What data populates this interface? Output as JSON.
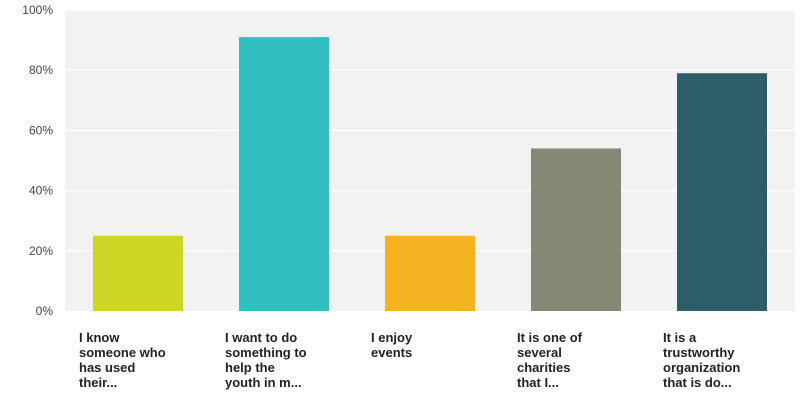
{
  "chart_data": {
    "type": "bar",
    "categories": [
      [
        "I know",
        "someone who",
        "has used",
        "their..."
      ],
      [
        "I want to do",
        "something to",
        "help the",
        "youth in m..."
      ],
      [
        "I enjoy",
        "events"
      ],
      [
        "It is one of",
        "several",
        "charities",
        "that I..."
      ],
      [
        "It is a",
        "trustworthy",
        "organization",
        "that is do..."
      ]
    ],
    "values": [
      25,
      91,
      25,
      54,
      79
    ],
    "colors": [
      "#cdd625",
      "#33bfbf",
      "#f4b120",
      "#858874",
      "#2c5d68"
    ],
    "ylim": [
      0,
      100
    ],
    "yticks": [
      0,
      20,
      40,
      60,
      80,
      100
    ],
    "ytick_labels": [
      "0%",
      "20%",
      "40%",
      "60%",
      "80%",
      "100%"
    ],
    "plot_background": "#f2f2f2",
    "grid": true,
    "grid_color": "#ffffff",
    "legend": "none"
  }
}
